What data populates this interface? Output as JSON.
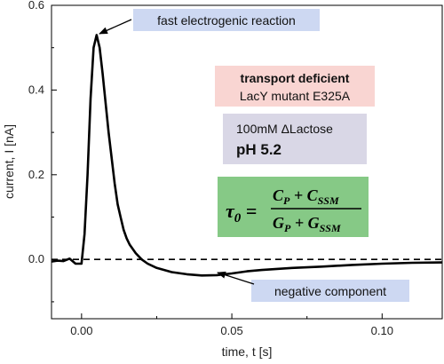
{
  "chart_data": {
    "type": "line",
    "title": "",
    "xlabel": "time, t [s]",
    "ylabel": "current, I [nA]",
    "xlim": [
      -0.01,
      0.12
    ],
    "ylim": [
      -0.14,
      0.6
    ],
    "x_ticks": [
      0.0,
      0.05,
      0.1
    ],
    "x_tick_labels": [
      "0.00",
      "0.05",
      "0.10"
    ],
    "y_ticks": [
      0.0,
      0.2,
      0.4,
      0.6
    ],
    "y_tick_labels": [
      "0.0",
      "0.2",
      "0.4",
      "0.6"
    ],
    "grid": false,
    "legend": "none",
    "baseline": {
      "y": 0.0,
      "style": "dashed",
      "color": "#000000"
    },
    "series": [
      {
        "color": "#000000",
        "x": [
          -0.01,
          -0.008,
          -0.006,
          -0.004,
          -0.002,
          0.0,
          0.001,
          0.002,
          0.003,
          0.004,
          0.005,
          0.006,
          0.007,
          0.008,
          0.009,
          0.01,
          0.011,
          0.012,
          0.013,
          0.014,
          0.015,
          0.016,
          0.018,
          0.02,
          0.022,
          0.025,
          0.03,
          0.035,
          0.04,
          0.045,
          0.05,
          0.055,
          0.06,
          0.07,
          0.08,
          0.09,
          0.1,
          0.11,
          0.12
        ],
        "values": [
          -0.005,
          -0.003,
          -0.004,
          0.002,
          -0.01,
          -0.01,
          0.06,
          0.2,
          0.38,
          0.5,
          0.53,
          0.5,
          0.44,
          0.37,
          0.3,
          0.24,
          0.18,
          0.13,
          0.1,
          0.07,
          0.05,
          0.035,
          0.015,
          0.0,
          -0.01,
          -0.02,
          -0.03,
          -0.035,
          -0.038,
          -0.037,
          -0.033,
          -0.028,
          -0.025,
          -0.02,
          -0.017,
          -0.013,
          -0.01,
          -0.008,
          -0.007
        ]
      }
    ],
    "annotations": [
      {
        "text": "fast electrogenic reaction",
        "bg": "#cdd8f2"
      },
      {
        "text": "negative component",
        "bg": "#cdd8f2"
      }
    ],
    "info_boxes": {
      "transport": {
        "line1": "transport deficient",
        "line2": "LacY mutant E325A",
        "bg": "#f9d5d2"
      },
      "conditions": {
        "line1": "100mM ΔLactose",
        "line2": "pH 5.2",
        "bg": "#d9d7e6"
      },
      "formula": {
        "bg": "#86c986"
      }
    }
  }
}
